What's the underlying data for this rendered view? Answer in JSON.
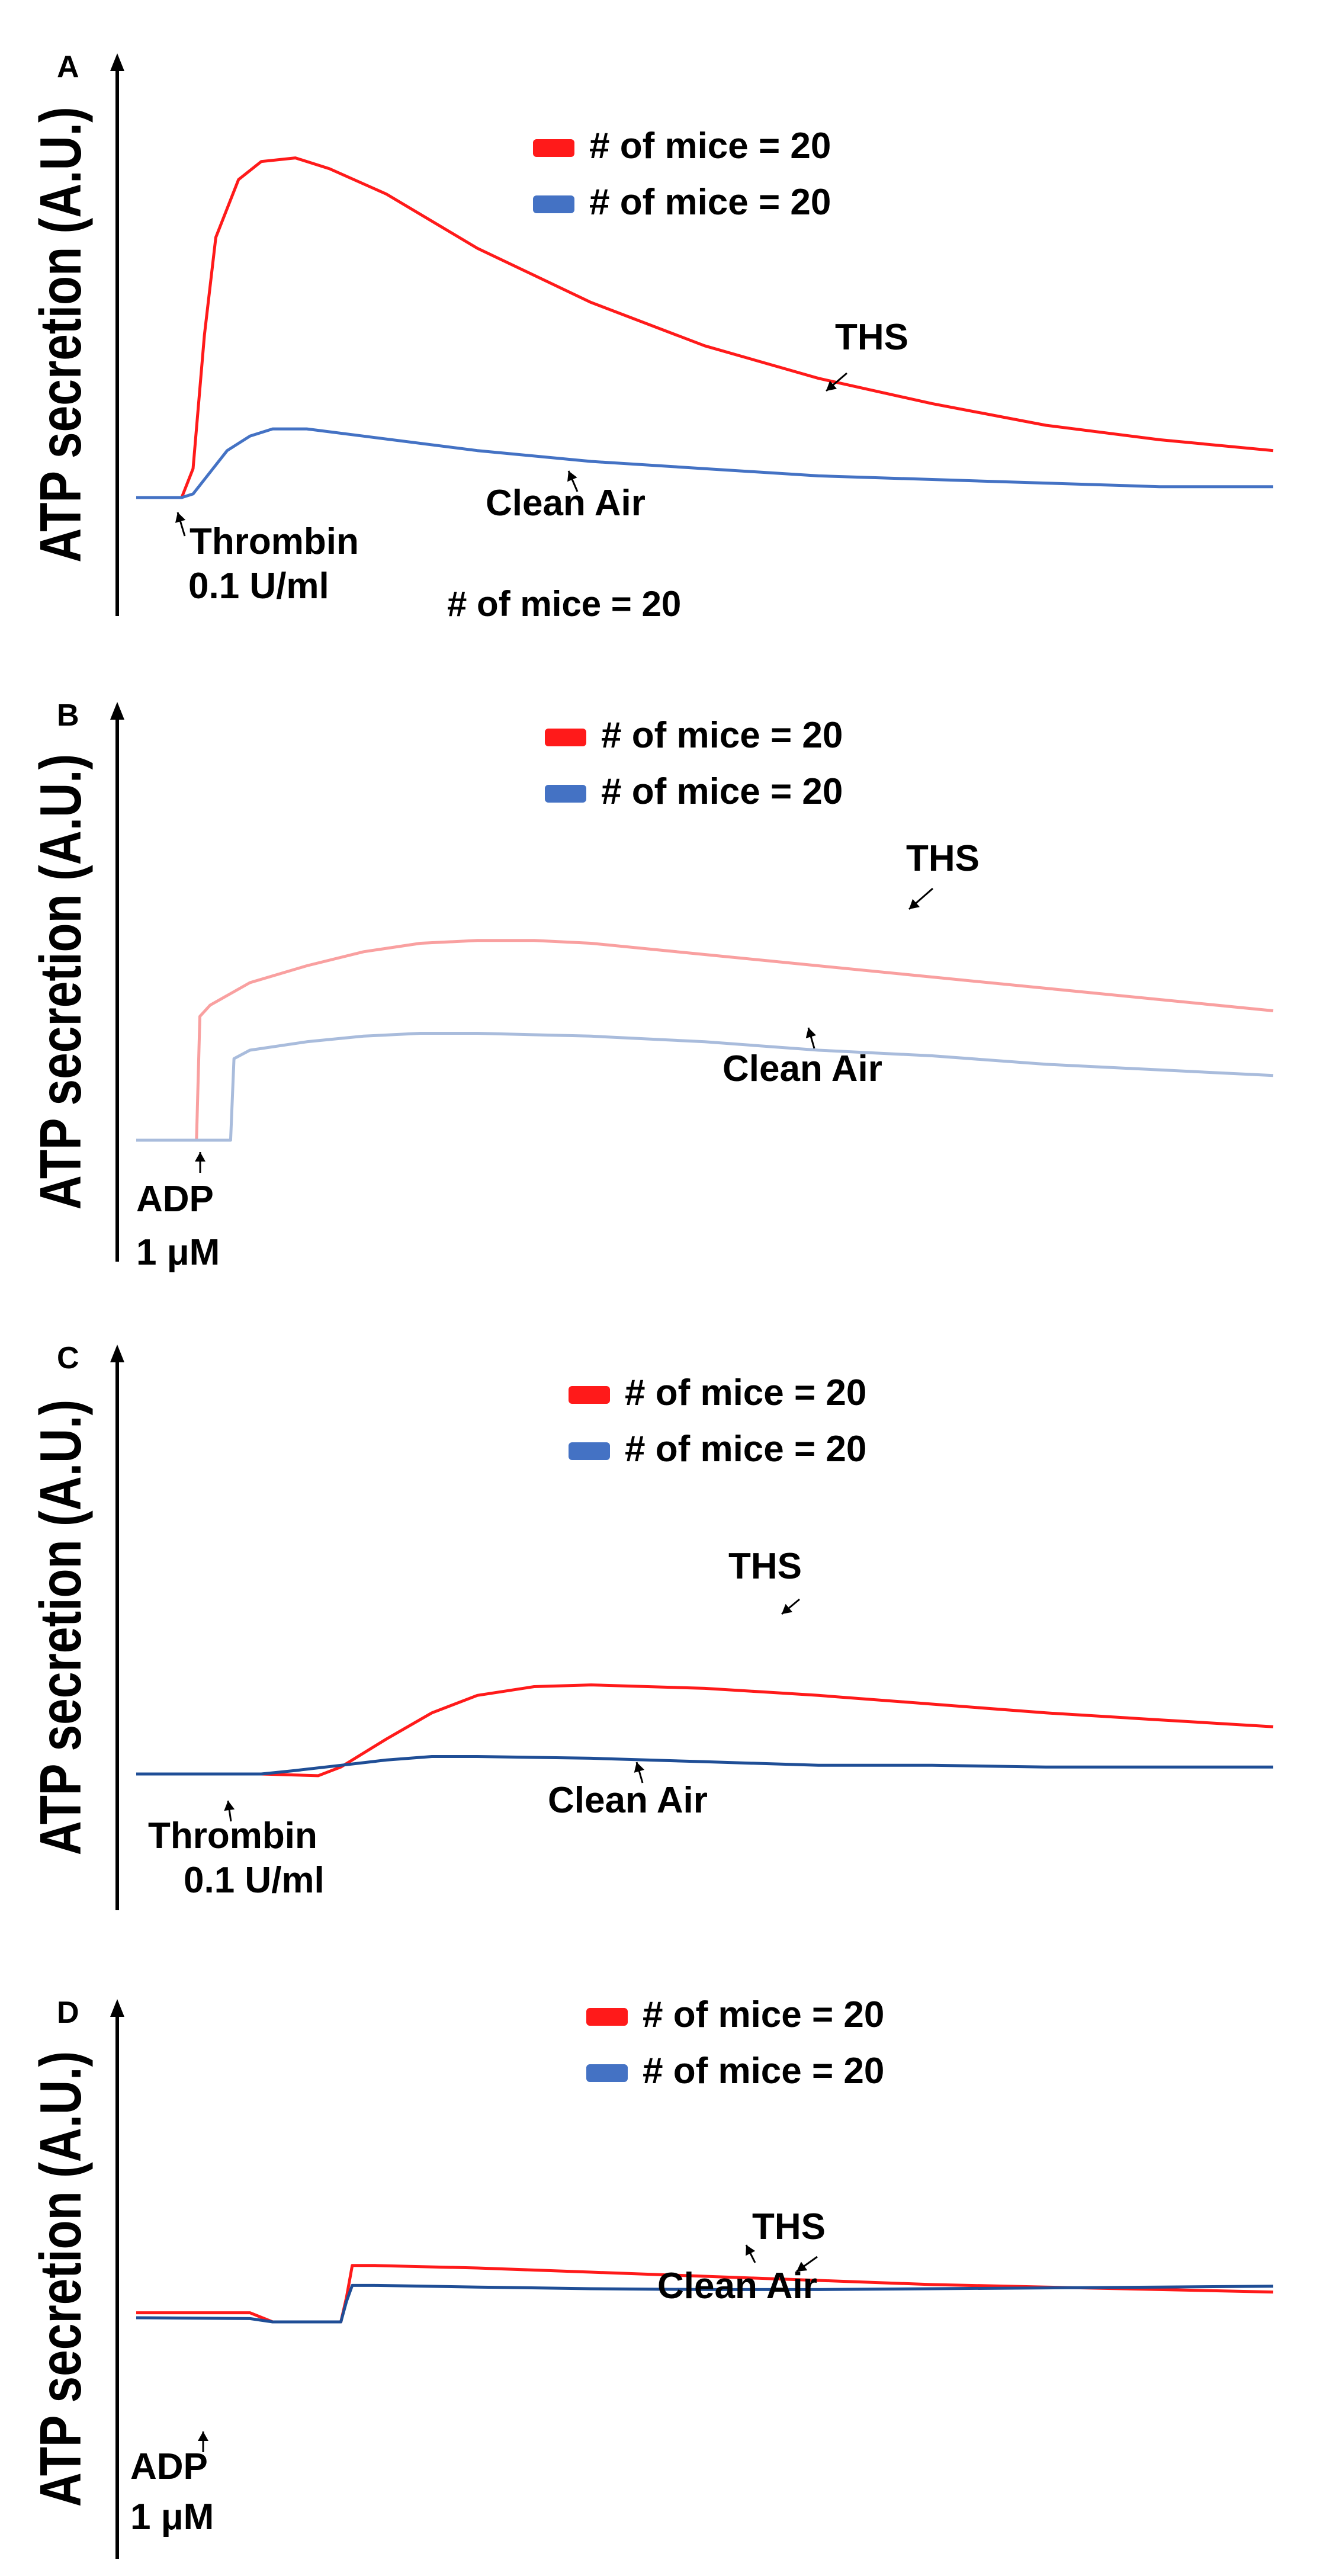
{
  "colors": {
    "ths": "#ff1a1a",
    "clean_air": "#4472c4",
    "ths_light": "#f9a0a0",
    "clean_air_light": "#a9bcdc",
    "clean_air_dark": "#1f4e96"
  },
  "chart_data": [
    {
      "panel": "A",
      "type": "line",
      "ylabel": "ATP secretion (A.U.)",
      "legend": [
        "# of mice = 20",
        "# of mice = 20"
      ],
      "note": "# of mice = 20",
      "stimulus": [
        "Thrombin",
        "0.1 U/ml"
      ],
      "xlim": [
        0,
        100
      ],
      "ylim": [
        0,
        100
      ],
      "series": [
        {
          "name": "THS",
          "color_key": "ths",
          "x": [
            0,
            4,
            5,
            6,
            7,
            9,
            11,
            14,
            17,
            22,
            30,
            40,
            50,
            60,
            70,
            80,
            90,
            100
          ],
          "y": [
            0,
            0,
            8,
            45,
            72,
            88,
            93,
            94,
            91,
            84,
            69,
            54,
            42,
            33,
            26,
            20,
            16,
            13
          ]
        },
        {
          "name": "Clean Air",
          "color_key": "clean_air",
          "x": [
            0,
            4,
            5,
            6,
            8,
            10,
            12,
            15,
            20,
            30,
            40,
            50,
            60,
            70,
            80,
            90,
            100
          ],
          "y": [
            0,
            0,
            1,
            5,
            13,
            17,
            19,
            19,
            17,
            13,
            10,
            8,
            6,
            5,
            4,
            3,
            3
          ]
        }
      ],
      "annotations": [
        {
          "text": "THS",
          "x": 62,
          "y": 40
        },
        {
          "text": "Clean Air",
          "x": 38,
          "y": 2
        }
      ]
    },
    {
      "panel": "B",
      "type": "line",
      "ylabel": "ATP secretion (A.U.)",
      "legend": [
        "# of mice = 20",
        "# of mice = 20"
      ],
      "stimulus": [
        "ADP",
        "1 μM"
      ],
      "xlim": [
        0,
        100
      ],
      "ylim": [
        0,
        100
      ],
      "series": [
        {
          "name": "THS",
          "color_key": "ths_light",
          "x": [
            0,
            5.3,
            5.6,
            6.5,
            10,
            15,
            20,
            25,
            30,
            35,
            40,
            45,
            50,
            60,
            70,
            80,
            90,
            100
          ],
          "y": [
            0,
            0,
            44,
            48,
            56,
            62,
            67,
            70,
            71,
            71,
            70,
            68,
            66,
            62,
            58,
            54,
            50,
            46
          ]
        },
        {
          "name": "Clean Air",
          "color_key": "clean_air_light",
          "x": [
            0,
            8.3,
            8.6,
            10,
            15,
            20,
            25,
            30,
            40,
            50,
            60,
            70,
            80,
            90,
            100
          ],
          "y": [
            0,
            0,
            29,
            32,
            35,
            37,
            38,
            38,
            37,
            35,
            32,
            30,
            27,
            25,
            23
          ]
        }
      ],
      "annotations": [
        {
          "text": "THS",
          "x": 66,
          "y": 80
        },
        {
          "text": "Clean Air",
          "x": 56,
          "y": 12
        }
      ]
    },
    {
      "panel": "C",
      "type": "line",
      "ylabel": "ATP secretion (A.U.)",
      "legend": [
        "# of mice = 20",
        "# of mice = 20"
      ],
      "stimulus": [
        "Thrombin",
        "0.1 U/ml"
      ],
      "xlim": [
        0,
        100
      ],
      "ylim": [
        0,
        100
      ],
      "series": [
        {
          "name": "THS",
          "color_key": "ths",
          "x": [
            0,
            11,
            16,
            18,
            22,
            26,
            30,
            35,
            40,
            45,
            50,
            55,
            60,
            70,
            80,
            90,
            100
          ],
          "y": [
            0,
            0,
            -1,
            4,
            20,
            35,
            45,
            50,
            51,
            50,
            49,
            47,
            45,
            40,
            35,
            31,
            27
          ]
        },
        {
          "name": "Clean Air",
          "color_key": "clean_air_dark",
          "x": [
            0,
            11,
            14,
            18,
            22,
            26,
            30,
            40,
            50,
            60,
            70,
            80,
            90,
            100
          ],
          "y": [
            0,
            0,
            2,
            5,
            8,
            10,
            10,
            9,
            7,
            5,
            5,
            4,
            4,
            4
          ]
        }
      ],
      "annotations": [
        {
          "text": "THS",
          "x": 56,
          "y": 66
        },
        {
          "text": "Clean Air",
          "x": 46,
          "y": -9
        }
      ]
    },
    {
      "panel": "D",
      "type": "line",
      "ylabel": "ATP secretion (A.U.)",
      "legend": [
        "# of mice = 20",
        "# of mice = 20"
      ],
      "stimulus": [
        "ADP",
        "1 μM"
      ],
      "xlim": [
        0,
        100
      ],
      "ylim": [
        0,
        100
      ],
      "series": [
        {
          "name": "THS",
          "color_key": "ths",
          "x": [
            0,
            3,
            10,
            12,
            18,
            18.5,
            19,
            21,
            30,
            40,
            50,
            60,
            70,
            80,
            90,
            100
          ],
          "y": [
            11,
            11,
            11,
            0,
            0,
            30,
            68,
            68,
            65,
            60,
            55,
            50,
            45,
            42,
            39,
            36
          ]
        },
        {
          "name": "Clean Air",
          "color_key": "clean_air_dark",
          "x": [
            0,
            10,
            12,
            18,
            18.5,
            19,
            21,
            30,
            40,
            50,
            60,
            70,
            80,
            90,
            100
          ],
          "y": [
            5,
            4,
            0,
            0,
            25,
            44,
            44,
            42,
            40,
            39,
            39,
            40,
            41,
            42,
            43
          ]
        }
      ],
      "annotations": [
        {
          "text": "THS",
          "x": 55,
          "y": 82
        },
        {
          "text": "Clean Air",
          "x": 47,
          "y": 12
        }
      ]
    }
  ]
}
